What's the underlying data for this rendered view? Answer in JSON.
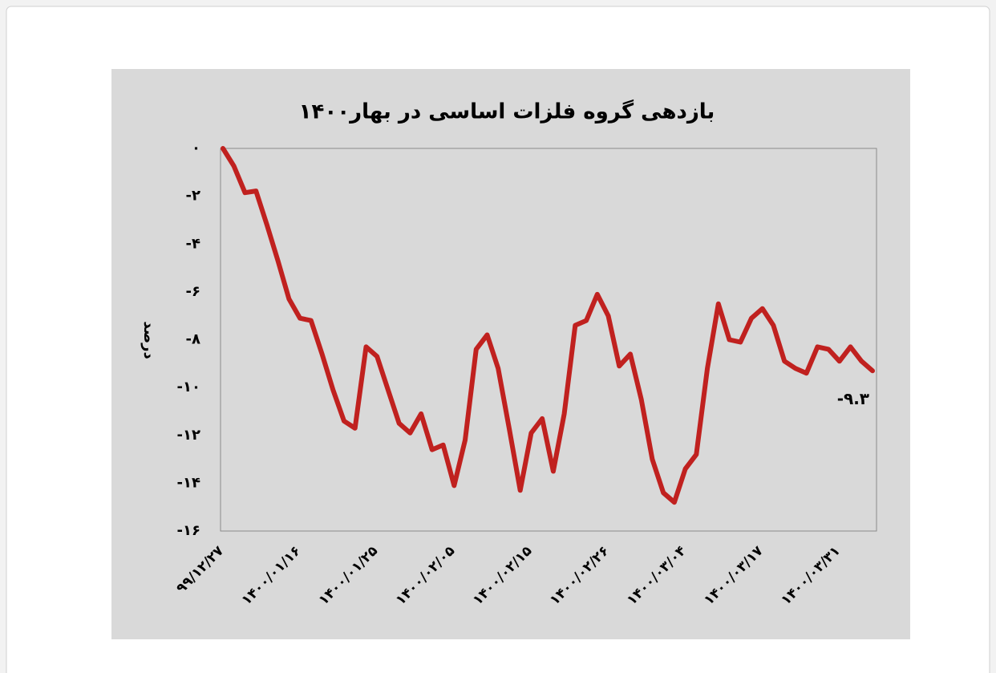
{
  "chart_data": {
    "type": "line",
    "title": "بازدهی گروه فلزات اساسی در بهار۱۴۰۰",
    "y_label": "درصد",
    "categories": [
      "۹۹/۱۲/۲۷",
      null,
      null,
      null,
      null,
      null,
      null,
      "۱۴۰۰/۰۱/۱۶",
      null,
      null,
      null,
      null,
      null,
      null,
      "۱۴۰۰/۰۱/۲۵",
      null,
      null,
      null,
      null,
      null,
      null,
      "۱۴۰۰/۰۲/۰۵",
      null,
      null,
      null,
      null,
      null,
      null,
      "۱۴۰۰/۰۲/۱۵",
      null,
      null,
      null,
      null,
      null,
      null,
      "۱۴۰۰/۰۲/۲۶",
      null,
      null,
      null,
      null,
      null,
      null,
      "۱۴۰۰/۰۳/۰۴",
      null,
      null,
      null,
      null,
      null,
      null,
      "۱۴۰۰/۰۳/۱۷",
      null,
      null,
      null,
      null,
      null,
      null,
      "۱۴۰۰/۰۳/۳۱",
      null,
      null,
      null
    ],
    "values": [
      0,
      -0.74,
      -1.85,
      -1.78,
      -3.2,
      -4.7,
      -6.3,
      -7.1,
      -7.2,
      -8.6,
      -10.1,
      -11.4,
      -11.7,
      -8.3,
      -8.7,
      -10.1,
      -11.5,
      -11.9,
      -11.1,
      -12.6,
      -12.4,
      -14.1,
      -12.2,
      -8.4,
      -7.8,
      -9.2,
      -11.7,
      -14.3,
      -11.9,
      -11.3,
      -13.5,
      -11.1,
      -7.4,
      -7.2,
      -6.1,
      -7.0,
      -9.1,
      -8.6,
      -10.5,
      -13.0,
      -14.4,
      -14.8,
      -13.4,
      -12.8,
      -9.2,
      -6.5,
      -8.0,
      -8.1,
      -7.1,
      -6.7,
      -7.4,
      -8.9,
      -9.2,
      -9.4,
      -8.3,
      -8.4,
      -8.9,
      -8.3,
      -8.9,
      -9.3
    ],
    "value_labels": [
      null,
      null,
      null,
      null,
      null,
      null,
      null,
      null,
      null,
      null,
      null,
      null,
      null,
      null,
      null,
      null,
      null,
      null,
      null,
      null,
      null,
      null,
      null,
      null,
      null,
      null,
      null,
      null,
      null,
      null,
      null,
      null,
      null,
      null,
      null,
      null,
      null,
      null,
      null,
      null,
      null,
      null,
      null,
      null,
      null,
      null,
      null,
      null,
      null,
      null,
      null,
      null,
      null,
      null,
      null,
      null,
      null,
      null,
      null,
      "-۹.۳"
    ],
    "color": "#c0211f",
    "ylim": [
      -16,
      0
    ],
    "yticks": [
      {
        "value": 0,
        "label": "۰"
      },
      {
        "value": -2,
        "label": "-۲"
      },
      {
        "value": -4,
        "label": "-۴"
      },
      {
        "value": -6,
        "label": "-۶"
      },
      {
        "value": -8,
        "label": "-۸"
      },
      {
        "value": -10,
        "label": "-۱۰"
      },
      {
        "value": -12,
        "label": "-۱۲"
      },
      {
        "value": -14,
        "label": "-۱۴"
      },
      {
        "value": -16,
        "label": "-۱۶"
      }
    ],
    "grid": false
  }
}
